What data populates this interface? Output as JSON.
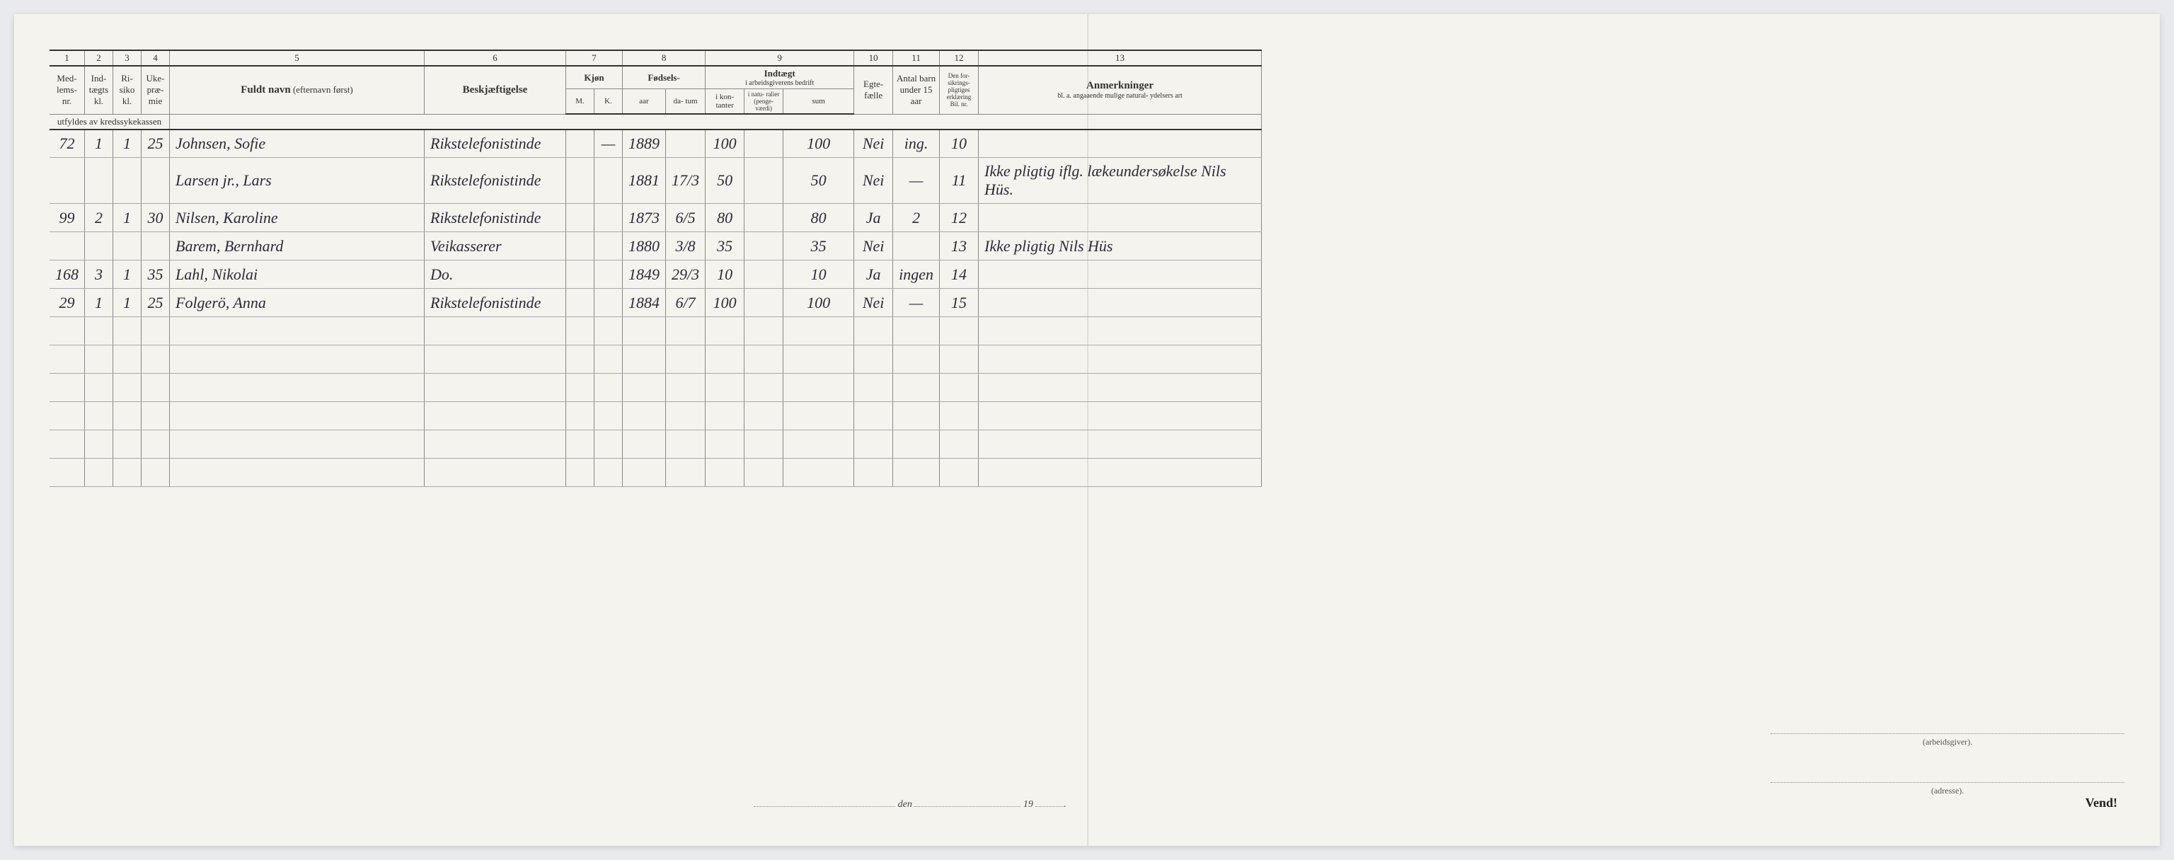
{
  "headers": {
    "col_nums": [
      "1",
      "2",
      "3",
      "4",
      "5",
      "6",
      "7",
      "8",
      "9",
      "10",
      "11",
      "12",
      "13"
    ],
    "medlems_nr": "Med-\nlems-\nnr.",
    "indtaegts_kl": "Ind-\ntægts\nkl.",
    "risiko_kl": "Ri-\nsiko\nkl.",
    "uke_praemie": "Uke-\npræ-\nmie",
    "fuldt_navn": "Fuldt navn",
    "fuldt_navn_sub": "(efternavn først)",
    "beskjaeftigelse": "Beskjæftigelse",
    "kjoen": "Kjøn",
    "kjoen_m": "M.",
    "kjoen_k": "K.",
    "foedsels": "Fødsels-",
    "aar": "aar",
    "datum": "da-\ntum",
    "indtaegt": "Indtægt",
    "indtaegt_sub": "i arbeidsgiverens bedrift",
    "i_kontanter": "i kon-\ntanter",
    "naturalier": "i natu-\nralier\n(penge-\nværdi)",
    "sum": "sum",
    "egtefaelle": "Egte-\nfælle",
    "antal_barn": "Antal\nbarn\nunder\n15 aar",
    "forsikring": "Den for-\nsikrings-\npligtiges\nerklæring\nBil. nr.",
    "anmerkninger": "Anmerkninger",
    "anmerkninger_sub": "bl. a. angaaende mulige natural-\nydelsers art",
    "utfyldes": "utfyldes av kredssykekassen"
  },
  "rows": [
    {
      "medlems_nr": "72",
      "indtaegts_kl": "1",
      "risiko_kl": "1",
      "uke_praemie": "25",
      "navn": "Johnsen, Sofie",
      "beskjaeftigelse": "Rikstelefonistinde",
      "kjoen_m": "",
      "kjoen_k": "—",
      "aar": "1889",
      "datum": "",
      "kontanter": "100",
      "naturalier": "",
      "sum": "100",
      "egtefaelle": "Nei",
      "barn": "ing.",
      "bil_nr": "10",
      "anm": ""
    },
    {
      "medlems_nr": "",
      "indtaegts_kl": "",
      "risiko_kl": "",
      "uke_praemie": "",
      "navn": "Larsen jr., Lars",
      "beskjaeftigelse": "Rikstelefonistinde",
      "kjoen_m": "",
      "kjoen_k": "",
      "aar": "1881",
      "datum": "17/3",
      "kontanter": "50",
      "naturalier": "",
      "sum": "50",
      "egtefaelle": "Nei",
      "barn": "—",
      "bil_nr": "11",
      "anm": "Ikke pligtig iflg. lækeundersøkelse Nils Hüs."
    },
    {
      "medlems_nr": "99",
      "indtaegts_kl": "2",
      "risiko_kl": "1",
      "uke_praemie": "30",
      "navn": "Nilsen, Karoline",
      "beskjaeftigelse": "Rikstelefonistinde",
      "kjoen_m": "",
      "kjoen_k": "",
      "aar": "1873",
      "datum": "6/5",
      "kontanter": "80",
      "naturalier": "",
      "sum": "80",
      "egtefaelle": "Ja",
      "barn": "2",
      "bil_nr": "12",
      "anm": ""
    },
    {
      "medlems_nr": "",
      "indtaegts_kl": "",
      "risiko_kl": "",
      "uke_praemie": "",
      "navn": "Barem, Bernhard",
      "beskjaeftigelse": "Veikasserer",
      "kjoen_m": "",
      "kjoen_k": "",
      "aar": "1880",
      "datum": "3/8",
      "kontanter": "35",
      "naturalier": "",
      "sum": "35",
      "egtefaelle": "Nei",
      "barn": "",
      "bil_nr": "13",
      "anm": "Ikke pligtig   Nils Hüs"
    },
    {
      "medlems_nr": "168",
      "indtaegts_kl": "3",
      "risiko_kl": "1",
      "uke_praemie": "35",
      "navn": "Lahl, Nikolai",
      "beskjaeftigelse": "Do.",
      "kjoen_m": "",
      "kjoen_k": "",
      "aar": "1849",
      "datum": "29/3",
      "kontanter": "10",
      "naturalier": "",
      "sum": "10",
      "egtefaelle": "Ja",
      "barn": "ingen",
      "bil_nr": "14",
      "anm": ""
    },
    {
      "medlems_nr": "29",
      "indtaegts_kl": "1",
      "risiko_kl": "1",
      "uke_praemie": "25",
      "navn": "Folgerö, Anna",
      "beskjaeftigelse": "Rikstelefonistinde",
      "kjoen_m": "",
      "kjoen_k": "",
      "aar": "1884",
      "datum": "6/7",
      "kontanter": "100",
      "naturalier": "",
      "sum": "100",
      "egtefaelle": "Nei",
      "barn": "—",
      "bil_nr": "15",
      "anm": ""
    }
  ],
  "footer": {
    "den": "den",
    "nineteen": "19",
    "arbeidsgiver": "(arbeidsgiver).",
    "adresse": "(adresse).",
    "vend": "Vend!"
  },
  "styling": {
    "paper_bg": "#f5f3ed",
    "page_bg": "#e8eaed",
    "ink_handwritten": "#2a2a3a",
    "ink_printed": "#333333",
    "rule_thick": "#333333",
    "rule_thin": "#888888",
    "handwritten_font": "Brush Script MT",
    "printed_font": "Times New Roman",
    "header_fontsize": 13,
    "handwritten_fontsize": 26,
    "doc_width": 3032,
    "doc_height": 1175
  }
}
